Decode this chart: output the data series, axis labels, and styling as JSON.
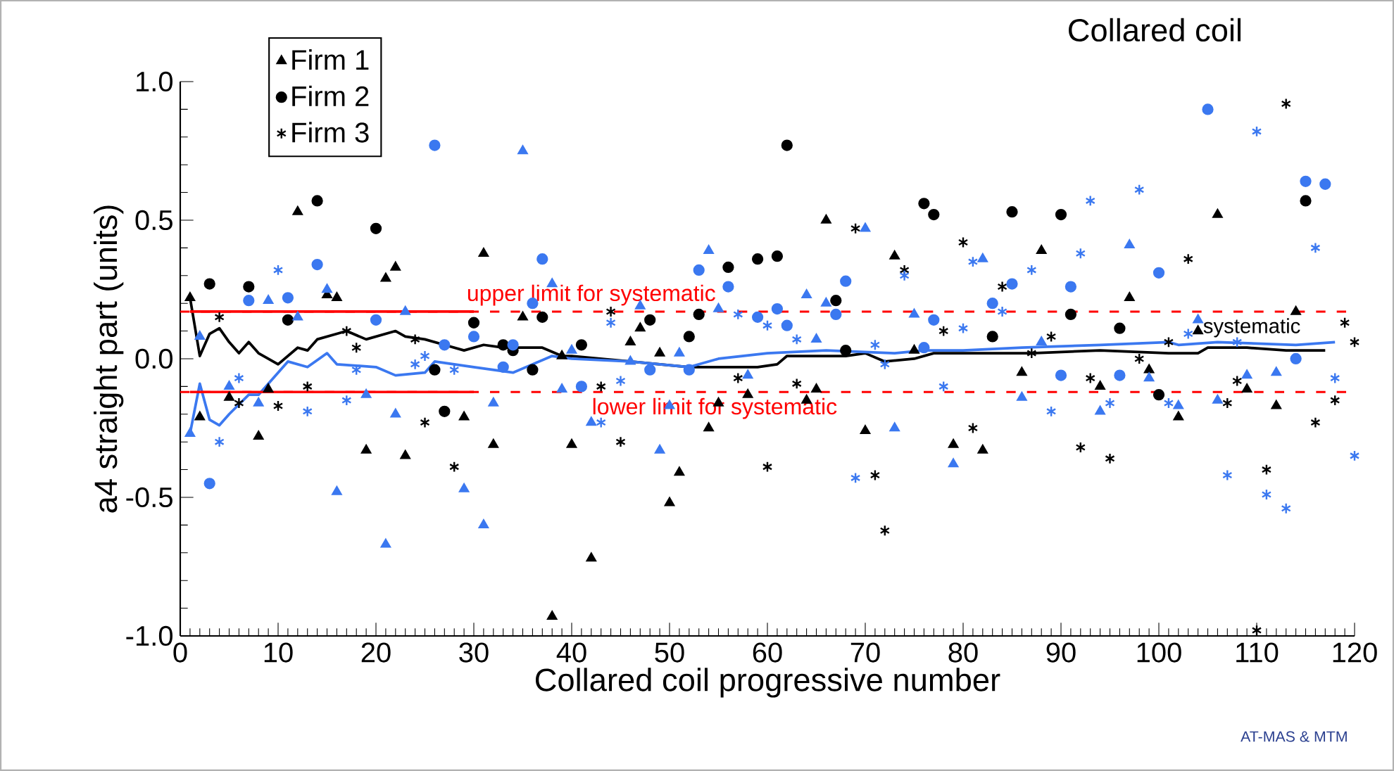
{
  "chart_data": {
    "type": "scatter",
    "title": "Collared coil",
    "xlabel": "Collared coil progressive number",
    "ylabel": "a4 straight part (units)",
    "xlim": [
      0,
      120
    ],
    "ylim": [
      -1.0,
      1.0
    ],
    "xticks": [
      0,
      10,
      20,
      30,
      40,
      50,
      60,
      70,
      80,
      90,
      100,
      110,
      120
    ],
    "yticks": [
      {
        "value": -1.0,
        "label": "-1.0"
      },
      {
        "value": -0.5,
        "label": "-0.5"
      },
      {
        "value": 0.0,
        "label": "0.0"
      },
      {
        "value": 0.5,
        "label": "0.5"
      },
      {
        "value": 1.0,
        "label": "1.0"
      }
    ],
    "legend": "top left",
    "series": [
      {
        "name": "Firm 1",
        "color": "#000000",
        "marker": "triangle",
        "x": [
          1,
          2,
          5,
          8,
          9,
          12,
          15,
          16,
          19,
          21,
          22,
          23,
          29,
          31,
          32,
          35,
          38,
          39,
          40,
          42,
          46,
          47,
          49,
          50,
          51,
          54,
          55,
          58,
          64,
          65,
          66,
          70,
          73,
          75,
          79,
          82,
          86,
          88,
          94,
          97,
          99,
          102,
          104,
          106,
          109,
          112,
          114
        ],
        "values": [
          0.22,
          -0.21,
          -0.14,
          -0.28,
          -0.11,
          0.53,
          0.23,
          0.22,
          -0.33,
          0.29,
          0.33,
          -0.35,
          -0.21,
          0.38,
          -0.31,
          0.15,
          -0.93,
          0.01,
          -0.31,
          -0.72,
          0.06,
          0.11,
          0.02,
          -0.52,
          -0.41,
          -0.25,
          -0.16,
          -0.13,
          -0.15,
          -0.11,
          0.5,
          -0.26,
          0.37,
          0.03,
          -0.31,
          -0.33,
          -0.05,
          0.39,
          -0.1,
          0.22,
          -0.04,
          -0.21,
          0.1,
          0.52,
          -0.11,
          -0.17,
          0.17
        ]
      },
      {
        "name": "Firm 2",
        "color": "#000000",
        "marker": "circle",
        "x": [
          3,
          7,
          11,
          14,
          20,
          26,
          27,
          30,
          33,
          34,
          36,
          37,
          41,
          48,
          52,
          53,
          56,
          59,
          61,
          62,
          67,
          68,
          76,
          77,
          83,
          85,
          90,
          91,
          96,
          100,
          115
        ],
        "values": [
          0.27,
          0.26,
          0.14,
          0.57,
          0.47,
          -0.04,
          -0.19,
          0.13,
          0.05,
          0.03,
          -0.04,
          0.15,
          0.05,
          0.14,
          0.08,
          0.16,
          0.33,
          0.36,
          0.37,
          0.77,
          0.21,
          0.03,
          0.56,
          0.52,
          0.08,
          0.53,
          0.52,
          0.16,
          0.11,
          -0.13,
          0.57
        ]
      },
      {
        "name": "Firm 3",
        "color": "#000000",
        "marker": "cross",
        "x": [
          4,
          6,
          10,
          13,
          17,
          18,
          24,
          25,
          28,
          43,
          44,
          45,
          57,
          60,
          63,
          69,
          71,
          72,
          74,
          78,
          80,
          81,
          84,
          87,
          89,
          92,
          93,
          95,
          98,
          101,
          103,
          107,
          108,
          110,
          111,
          113,
          116,
          118,
          119,
          120
        ],
        "values": [
          0.15,
          -0.16,
          -0.17,
          -0.1,
          0.1,
          0.04,
          0.07,
          -0.23,
          -0.39,
          -0.1,
          0.17,
          -0.3,
          -0.07,
          -0.39,
          -0.09,
          0.47,
          -0.42,
          -0.62,
          0.32,
          0.1,
          0.42,
          -0.25,
          0.26,
          0.02,
          0.08,
          -0.32,
          -0.07,
          -0.36,
          0.0,
          0.06,
          0.36,
          -0.16,
          -0.08,
          -0.98,
          -0.4,
          0.92,
          -0.23,
          -0.15,
          0.13,
          0.06
        ]
      },
      {
        "color": "#3b78f0",
        "marker": "triangle",
        "x": [
          1,
          2,
          5,
          8,
          9,
          12,
          15,
          16,
          19,
          21,
          22,
          23,
          29,
          31,
          32,
          35,
          38,
          39,
          40,
          42,
          46,
          47,
          49,
          50,
          51,
          54,
          55,
          58,
          64,
          65,
          66,
          70,
          73,
          75,
          79,
          82,
          86,
          88,
          94,
          97,
          99,
          102,
          104,
          106,
          109,
          112
        ],
        "values": [
          -0.27,
          0.08,
          -0.1,
          -0.16,
          0.21,
          0.15,
          0.25,
          -0.48,
          -0.13,
          -0.67,
          -0.2,
          0.17,
          -0.47,
          -0.6,
          -0.16,
          0.75,
          0.27,
          -0.11,
          0.03,
          -0.23,
          -0.01,
          0.19,
          -0.33,
          -0.17,
          0.02,
          0.39,
          0.18,
          -0.06,
          0.23,
          0.07,
          0.2,
          0.47,
          -0.25,
          0.16,
          -0.38,
          0.36,
          -0.14,
          0.06,
          -0.19,
          0.41,
          -0.07,
          -0.17,
          0.14,
          -0.15,
          -0.06,
          -0.05
        ]
      },
      {
        "color": "#3b78f0",
        "marker": "circle",
        "x": [
          3,
          7,
          11,
          14,
          20,
          26,
          27,
          30,
          33,
          34,
          36,
          37,
          41,
          48,
          52,
          53,
          56,
          59,
          61,
          62,
          67,
          68,
          76,
          77,
          83,
          85,
          90,
          91,
          96,
          100,
          105,
          114,
          115,
          117
        ],
        "values": [
          -0.45,
          0.21,
          0.22,
          0.34,
          0.14,
          0.77,
          0.05,
          0.08,
          -0.03,
          0.05,
          0.2,
          0.36,
          -0.1,
          -0.04,
          -0.04,
          0.32,
          0.26,
          0.15,
          0.18,
          0.12,
          0.16,
          0.28,
          0.04,
          0.14,
          0.2,
          0.27,
          -0.06,
          0.26,
          -0.06,
          0.31,
          0.9,
          0.0,
          0.64,
          0.63
        ]
      },
      {
        "color": "#3b78f0",
        "marker": "cross",
        "x": [
          4,
          6,
          10,
          13,
          17,
          18,
          24,
          25,
          28,
          43,
          44,
          45,
          57,
          60,
          63,
          69,
          71,
          72,
          74,
          78,
          80,
          81,
          84,
          87,
          89,
          92,
          93,
          95,
          98,
          101,
          103,
          107,
          108,
          110,
          111,
          113,
          116,
          118,
          120
        ],
        "values": [
          -0.3,
          -0.07,
          0.32,
          -0.19,
          -0.15,
          -0.04,
          -0.02,
          0.01,
          -0.04,
          -0.23,
          0.13,
          -0.08,
          0.16,
          0.12,
          0.07,
          -0.43,
          0.05,
          -0.02,
          0.3,
          -0.1,
          0.11,
          0.35,
          0.17,
          0.32,
          -0.19,
          0.38,
          0.57,
          -0.16,
          0.61,
          -0.16,
          0.09,
          -0.42,
          0.06,
          0.82,
          -0.49,
          -0.54,
          0.4,
          -0.07,
          -0.35
        ]
      },
      {
        "type": "line",
        "color": "#000000",
        "marker": "none",
        "line_style": "solid",
        "x": [
          1,
          2,
          3,
          4,
          5,
          6,
          7,
          8,
          10,
          12,
          13,
          14,
          16,
          17,
          19,
          22,
          23,
          25,
          27,
          29,
          31,
          33,
          37,
          39,
          40,
          46,
          52,
          59,
          61,
          62,
          68,
          70,
          72,
          75,
          77,
          80,
          87,
          94,
          101,
          104,
          105,
          109,
          113,
          117
        ],
        "values": [
          0.22,
          0.01,
          0.09,
          0.11,
          0.06,
          0.02,
          0.06,
          0.02,
          -0.02,
          0.04,
          0.03,
          0.07,
          0.09,
          0.1,
          0.07,
          0.1,
          0.08,
          0.07,
          0.05,
          0.03,
          0.05,
          0.04,
          0.04,
          0.01,
          0.01,
          -0.01,
          -0.03,
          -0.03,
          -0.02,
          0.01,
          0.01,
          0.02,
          -0.01,
          0.0,
          0.02,
          0.02,
          0.02,
          0.03,
          0.02,
          0.02,
          0.04,
          0.04,
          0.03,
          0.03
        ]
      },
      {
        "type": "line",
        "color": "#3b78f0",
        "marker": "none",
        "line_style": "solid",
        "x": [
          1,
          2,
          3,
          4,
          5,
          7,
          8,
          10,
          11,
          13,
          15,
          16,
          20,
          22,
          25,
          26,
          30,
          34,
          36,
          38,
          40,
          46,
          52,
          55,
          60,
          66,
          73,
          76,
          80,
          86,
          94,
          101,
          102,
          106,
          114,
          118
        ],
        "values": [
          -0.27,
          -0.09,
          -0.22,
          -0.24,
          -0.2,
          -0.13,
          -0.13,
          -0.05,
          -0.01,
          -0.03,
          0.02,
          -0.02,
          -0.03,
          -0.06,
          -0.05,
          -0.01,
          -0.03,
          -0.05,
          -0.02,
          0.01,
          0.0,
          -0.01,
          -0.03,
          0.0,
          0.02,
          0.03,
          0.02,
          0.03,
          0.03,
          0.04,
          0.05,
          0.06,
          0.05,
          0.06,
          0.05,
          0.06
        ]
      },
      {
        "type": "line",
        "color": "#ff0000",
        "marker": "none",
        "line_style": "solid",
        "x": [
          1,
          30
        ],
        "values": [
          0.17,
          0.17
        ]
      },
      {
        "type": "line",
        "color": "#ff0000",
        "marker": "none",
        "line_style": "solid",
        "x": [
          1,
          30
        ],
        "values": [
          -0.12,
          -0.12
        ]
      }
    ],
    "ref_lines": [
      {
        "axis": "y",
        "value": 0.17,
        "label": "upper limit for systematic",
        "color": "#ff0000",
        "line_style": "dashed"
      },
      {
        "axis": "y",
        "value": -0.12,
        "label": "lower limit for systematic",
        "color": "#ff0000",
        "line_style": "dashed"
      }
    ],
    "annotations": [
      "systematic",
      "AT-MAS & MTM"
    ]
  }
}
